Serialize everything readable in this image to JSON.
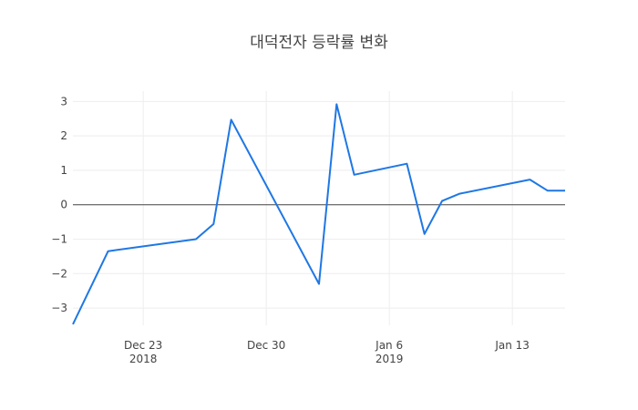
{
  "chart_data": {
    "type": "line",
    "title": "대덕전자 등락률 변화",
    "xlabel": "",
    "ylabel": "",
    "x_range": [
      "2018-12-19",
      "2019-01-16"
    ],
    "ylim": [
      -3.5,
      3.3
    ],
    "y_ticks": [
      3,
      2,
      1,
      0,
      -1,
      -2,
      -3
    ],
    "y_tick_labels": [
      "3",
      "2",
      "1",
      "0",
      "−1",
      "−2",
      "−3"
    ],
    "x_ticks": [
      {
        "date": "2018-12-23",
        "label": "Dec 23",
        "sublabel": "2018"
      },
      {
        "date": "2018-12-30",
        "label": "Dec 30",
        "sublabel": ""
      },
      {
        "date": "2019-01-06",
        "label": "Jan 6",
        "sublabel": "2019"
      },
      {
        "date": "2019-01-13",
        "label": "Jan 13",
        "sublabel": ""
      }
    ],
    "grid": true,
    "zero_line": true,
    "line_color": "#1f77e4",
    "series": [
      {
        "x": [
          "2018-12-19",
          "2018-12-21",
          "2018-12-26",
          "2018-12-27",
          "2018-12-28",
          "2019-01-02",
          "2019-01-03",
          "2019-01-04",
          "2019-01-07",
          "2019-01-08",
          "2019-01-09",
          "2019-01-10",
          "2019-01-14",
          "2019-01-15",
          "2019-01-16"
        ],
        "y": [
          -3.47,
          -1.35,
          -1.0,
          -0.56,
          2.47,
          -2.3,
          2.92,
          0.87,
          1.19,
          -0.85,
          0.11,
          0.32,
          0.73,
          0.41,
          0.41
        ]
      }
    ]
  }
}
